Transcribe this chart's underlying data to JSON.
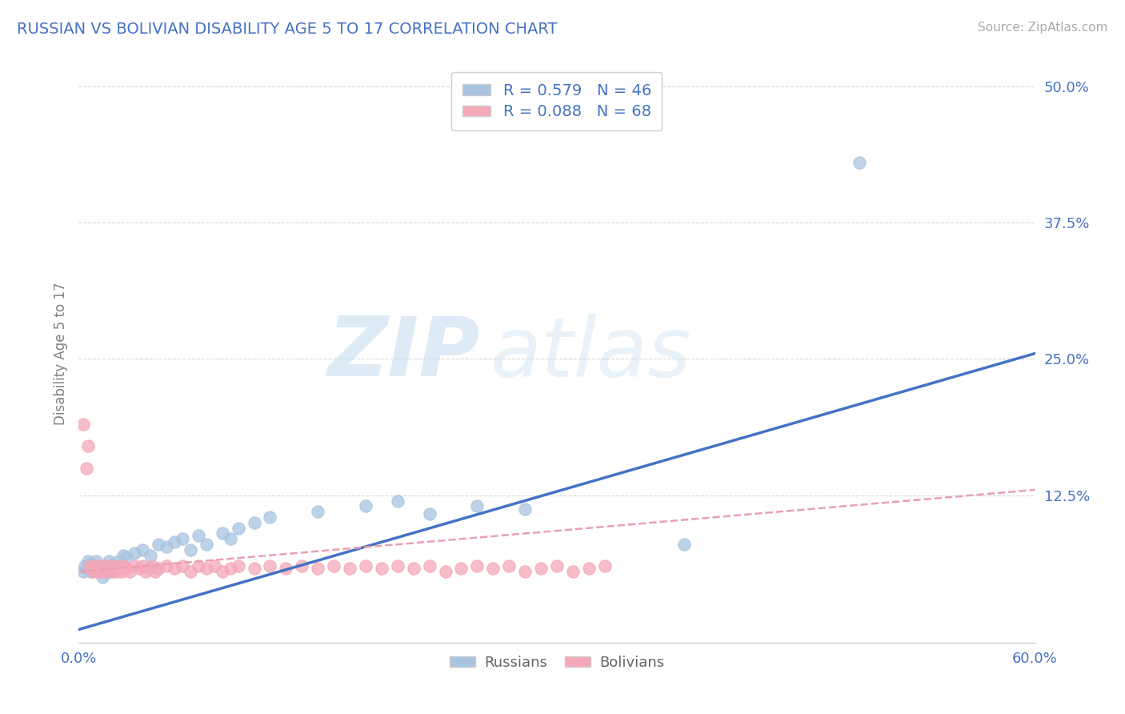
{
  "title": "RUSSIAN VS BOLIVIAN DISABILITY AGE 5 TO 17 CORRELATION CHART",
  "source_text": "Source: ZipAtlas.com",
  "ylabel": "Disability Age 5 to 17",
  "xlim": [
    0.0,
    0.6
  ],
  "ylim": [
    -0.01,
    0.52
  ],
  "xticks": [
    0.0,
    0.1,
    0.2,
    0.3,
    0.4,
    0.5,
    0.6
  ],
  "yticks": [
    0.125,
    0.25,
    0.375,
    0.5
  ],
  "ytick_labels": [
    "12.5%",
    "25.0%",
    "37.5%",
    "50.0%"
  ],
  "xtick_labels": [
    "0.0%",
    "",
    "",
    "",
    "",
    "",
    "60.0%"
  ],
  "legend_r1": "R = 0.579",
  "legend_n1": "N = 46",
  "legend_r2": "R = 0.088",
  "legend_n2": "N = 68",
  "russian_color": "#a8c4e0",
  "bolivian_color": "#f4a8b8",
  "russian_line_color": "#4472c4",
  "bolivian_line_color": "#e8a0b0",
  "watermark_zip": "ZIP",
  "watermark_atlas": "atlas",
  "background_color": "#ffffff",
  "title_color": "#4472c4",
  "axis_label_color": "#808080",
  "tick_label_color": "#4472c4",
  "grid_color": "#d8d8d8",
  "russians_scatter": [
    [
      0.003,
      0.055
    ],
    [
      0.004,
      0.06
    ],
    [
      0.005,
      0.058
    ],
    [
      0.006,
      0.065
    ],
    [
      0.007,
      0.062
    ],
    [
      0.008,
      0.055
    ],
    [
      0.009,
      0.06
    ],
    [
      0.01,
      0.058
    ],
    [
      0.011,
      0.065
    ],
    [
      0.012,
      0.055
    ],
    [
      0.013,
      0.06
    ],
    [
      0.014,
      0.058
    ],
    [
      0.015,
      0.05
    ],
    [
      0.016,
      0.055
    ],
    [
      0.017,
      0.06
    ],
    [
      0.018,
      0.058
    ],
    [
      0.019,
      0.065
    ],
    [
      0.02,
      0.055
    ],
    [
      0.021,
      0.062
    ],
    [
      0.022,
      0.058
    ],
    [
      0.025,
      0.065
    ],
    [
      0.028,
      0.07
    ],
    [
      0.03,
      0.068
    ],
    [
      0.035,
      0.072
    ],
    [
      0.04,
      0.075
    ],
    [
      0.045,
      0.07
    ],
    [
      0.05,
      0.08
    ],
    [
      0.055,
      0.078
    ],
    [
      0.06,
      0.082
    ],
    [
      0.065,
      0.085
    ],
    [
      0.07,
      0.075
    ],
    [
      0.075,
      0.088
    ],
    [
      0.08,
      0.08
    ],
    [
      0.09,
      0.09
    ],
    [
      0.095,
      0.085
    ],
    [
      0.1,
      0.095
    ],
    [
      0.11,
      0.1
    ],
    [
      0.12,
      0.105
    ],
    [
      0.15,
      0.11
    ],
    [
      0.18,
      0.115
    ],
    [
      0.2,
      0.12
    ],
    [
      0.22,
      0.108
    ],
    [
      0.25,
      0.115
    ],
    [
      0.28,
      0.112
    ],
    [
      0.38,
      0.08
    ],
    [
      0.49,
      0.43
    ]
  ],
  "bolivians_scatter": [
    [
      0.003,
      0.19
    ],
    [
      0.005,
      0.15
    ],
    [
      0.006,
      0.17
    ],
    [
      0.007,
      0.06
    ],
    [
      0.008,
      0.058
    ],
    [
      0.009,
      0.055
    ],
    [
      0.01,
      0.06
    ],
    [
      0.011,
      0.058
    ],
    [
      0.012,
      0.055
    ],
    [
      0.013,
      0.06
    ],
    [
      0.014,
      0.055
    ],
    [
      0.015,
      0.058
    ],
    [
      0.016,
      0.06
    ],
    [
      0.017,
      0.055
    ],
    [
      0.018,
      0.058
    ],
    [
      0.019,
      0.06
    ],
    [
      0.02,
      0.058
    ],
    [
      0.021,
      0.055
    ],
    [
      0.022,
      0.06
    ],
    [
      0.023,
      0.058
    ],
    [
      0.024,
      0.055
    ],
    [
      0.025,
      0.06
    ],
    [
      0.026,
      0.058
    ],
    [
      0.027,
      0.055
    ],
    [
      0.028,
      0.06
    ],
    [
      0.03,
      0.058
    ],
    [
      0.032,
      0.055
    ],
    [
      0.035,
      0.06
    ],
    [
      0.038,
      0.058
    ],
    [
      0.04,
      0.06
    ],
    [
      0.042,
      0.055
    ],
    [
      0.044,
      0.058
    ],
    [
      0.046,
      0.06
    ],
    [
      0.048,
      0.055
    ],
    [
      0.05,
      0.058
    ],
    [
      0.055,
      0.06
    ],
    [
      0.06,
      0.058
    ],
    [
      0.065,
      0.06
    ],
    [
      0.07,
      0.055
    ],
    [
      0.075,
      0.06
    ],
    [
      0.08,
      0.058
    ],
    [
      0.085,
      0.06
    ],
    [
      0.09,
      0.055
    ],
    [
      0.095,
      0.058
    ],
    [
      0.1,
      0.06
    ],
    [
      0.11,
      0.058
    ],
    [
      0.12,
      0.06
    ],
    [
      0.13,
      0.058
    ],
    [
      0.14,
      0.06
    ],
    [
      0.15,
      0.058
    ],
    [
      0.16,
      0.06
    ],
    [
      0.17,
      0.058
    ],
    [
      0.18,
      0.06
    ],
    [
      0.19,
      0.058
    ],
    [
      0.2,
      0.06
    ],
    [
      0.21,
      0.058
    ],
    [
      0.22,
      0.06
    ],
    [
      0.23,
      0.055
    ],
    [
      0.24,
      0.058
    ],
    [
      0.25,
      0.06
    ],
    [
      0.26,
      0.058
    ],
    [
      0.27,
      0.06
    ],
    [
      0.28,
      0.055
    ],
    [
      0.29,
      0.058
    ],
    [
      0.3,
      0.06
    ],
    [
      0.31,
      0.055
    ],
    [
      0.32,
      0.058
    ],
    [
      0.33,
      0.06
    ]
  ],
  "russian_regline": [
    [
      0.0,
      0.002
    ],
    [
      0.6,
      0.255
    ]
  ],
  "bolivian_regline": [
    [
      0.0,
      0.055
    ],
    [
      0.6,
      0.13
    ]
  ]
}
